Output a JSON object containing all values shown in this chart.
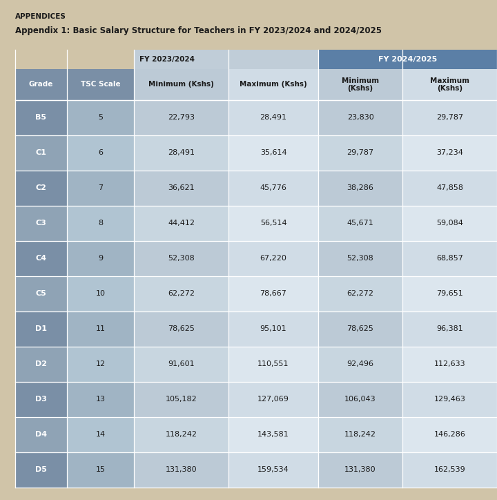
{
  "appendices_label": "APPENDICES",
  "title": "Appendix 1: Basic Salary Structure for Teachers in FY 2023/2024 and 2024/2025",
  "fy_2024_label": "FY 2024/2025",
  "fy_2023_label": "FY 2023/2024",
  "rows": [
    [
      "B5",
      "5",
      "22,793",
      "28,491",
      "23,830",
      "29,787"
    ],
    [
      "C1",
      "6",
      "28,491",
      "35,614",
      "29,787",
      "37,234"
    ],
    [
      "C2",
      "7",
      "36,621",
      "45,776",
      "38,286",
      "47,858"
    ],
    [
      "C3",
      "8",
      "44,412",
      "56,514",
      "45,671",
      "59,084"
    ],
    [
      "C4",
      "9",
      "52,308",
      "67,220",
      "52,308",
      "68,857"
    ],
    [
      "C5",
      "10",
      "62,272",
      "78,667",
      "62,272",
      "79,651"
    ],
    [
      "D1",
      "11",
      "78,625",
      "95,101",
      "78,625",
      "96,381"
    ],
    [
      "D2",
      "12",
      "91,601",
      "110,551",
      "92,496",
      "112,633"
    ],
    [
      "D3",
      "13",
      "105,182",
      "127,069",
      "106,043",
      "129,463"
    ],
    [
      "D4",
      "14",
      "118,242",
      "143,581",
      "118,242",
      "146,286"
    ],
    [
      "D5",
      "15",
      "131,380",
      "159,534",
      "131,380",
      "162,539"
    ]
  ],
  "grade_col_color": "#7a8fa6",
  "tsc_col_color": "#a0b4c4",
  "fy2023_min_color": "#bccad6",
  "fy2023_max_color": "#d0dce6",
  "fy2024_min_color": "#bccad6",
  "fy2024_max_color": "#d0dce6",
  "grade_col_color_alt": "#8fa3b5",
  "tsc_col_color_alt": "#b0c4d2",
  "fy2023_min_color_alt": "#c8d6e0",
  "fy2023_max_color_alt": "#dce6ee",
  "fy2024_min_color_alt": "#c8d6e0",
  "fy2024_max_color_alt": "#dce6ee",
  "header_blue": "#5b7fa6",
  "header_light": "#c0cdd8",
  "page_bg": "#d0c4a8",
  "white": "#ffffff",
  "dark_text": "#1a1a1a"
}
